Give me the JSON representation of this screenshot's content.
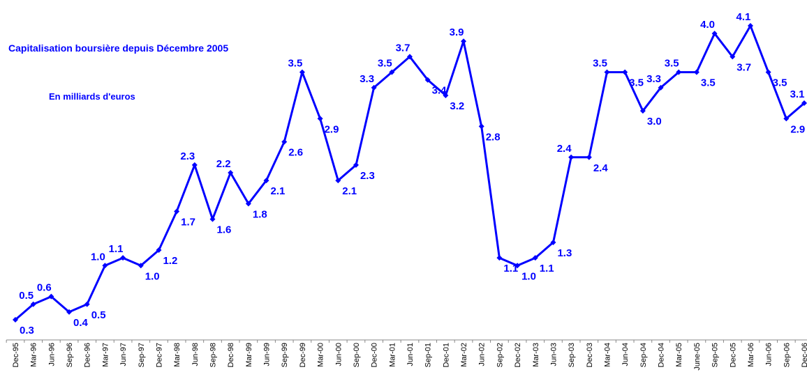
{
  "chart_data": {
    "type": "line",
    "title": "Capitalisation boursière depuis Décembre 2005",
    "subtitle": "En milliards d'euros",
    "categories": [
      "Dec-95",
      "Mar-96",
      "Jun-96",
      "Sep-96",
      "Dec-96",
      "Mar-97",
      "Jun-97",
      "Sep-97",
      "Dec-97",
      "Mar-98",
      "Jun-98",
      "Sep-98",
      "Dec-98",
      "Mar-99",
      "Jun-99",
      "Sep-99",
      "Dec-99",
      "Mar-00",
      "Jun-00",
      "Sep-00",
      "Dec-00",
      "Mar-01",
      "Jun-01",
      "Sep-01",
      "Dec-01",
      "Mar-02",
      "Jun-02",
      "Sep-02",
      "Dec-02",
      "Mar-03",
      "Jun-03",
      "Sep-03",
      "Dec-03",
      "Mar-04",
      "Jun-04",
      "Sep-04",
      "Dec-04",
      "Mar-05",
      "June-05",
      "Sep-05",
      "Dec-05",
      "Mar-06",
      "Jun-06",
      "Sep-06",
      "Dec-06"
    ],
    "color": "#0000ff",
    "values": [
      0.3,
      0.5,
      0.6,
      0.4,
      0.5,
      1.0,
      1.1,
      1.0,
      1.2,
      1.7,
      2.3,
      1.6,
      2.2,
      1.8,
      2.1,
      2.6,
      3.5,
      2.9,
      2.1,
      2.3,
      3.3,
      3.5,
      3.7,
      3.4,
      3.2,
      3.9,
      2.8,
      1.1,
      1.0,
      1.1,
      1.3,
      2.4,
      2.4,
      3.5,
      3.5,
      3.0,
      3.3,
      3.5,
      3.5,
      4.0,
      3.7,
      4.1,
      3.5,
      2.9,
      3.1
    ],
    "value_labels": [
      "0.3",
      "0.5",
      "0.6",
      "0.4",
      "0.5",
      "1.0",
      "1.1",
      "1.0",
      "1.2",
      "1.7",
      "2.3",
      "1.6",
      "2.2",
      "1.8",
      "2.1",
      "2.6",
      "3.5",
      "2.9",
      "2.1",
      "2.3",
      "3.3",
      "3.5",
      "3.7",
      "3.4",
      "3.2",
      "3.9",
      "2.8",
      "1.1",
      "1.0",
      "1.1",
      "1.3",
      "2.4",
      "2.4",
      "3.5",
      "3.5",
      "3.0",
      "3.3",
      "3.5",
      "3.5",
      "4.0",
      "3.7",
      "4.1",
      "3.5",
      "2.9",
      "3.1"
    ]
  }
}
